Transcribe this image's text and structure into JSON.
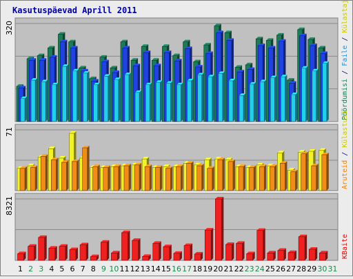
{
  "chart_data": {
    "type": "bar",
    "title": "Kasutuspäevad Aprill 2011",
    "categories": [
      "1",
      "2",
      "3",
      "4",
      "5",
      "6",
      "7",
      "8",
      "9",
      "10",
      "11",
      "12",
      "13",
      "14",
      "15",
      "16",
      "17",
      "18",
      "19",
      "20",
      "21",
      "22",
      "23",
      "24",
      "25",
      "26",
      "27",
      "28",
      "29",
      "30",
      "31"
    ],
    "weekend_days": [
      "2",
      "3",
      "9",
      "10",
      "16",
      "17",
      "23",
      "24",
      "30",
      "31"
    ],
    "panels": [
      {
        "key": "pages",
        "ymax_label": "320",
        "ymax": 320,
        "legend_label": "Pöördumisi / Faile / Külastajaid",
        "legend_parts": [
          {
            "text": "Pöördumisi",
            "color": "#1b7a55"
          },
          {
            "text": " / ",
            "color": "#000080"
          },
          {
            "text": "Faile",
            "color": "#2a8fd0"
          },
          {
            "text": " / ",
            "color": "#000080"
          },
          {
            "text": "Külastajaid",
            "color": "#c8c800"
          }
        ],
        "series": [
          {
            "name": "Pöördumisi",
            "color": "#1f7a58",
            "values": [
              115,
              205,
              215,
              240,
              285,
              260,
              175,
              140,
              210,
              175,
              260,
              200,
              245,
              200,
              245,
              215,
              260,
              195,
              250,
              312,
              290,
              177,
              185,
              270,
              265,
              282,
              135,
              300,
              268,
              240
            ]
          },
          {
            "name": "Faile",
            "color": "#1f42e0",
            "values": [
              110,
              200,
              200,
              210,
              260,
              240,
              165,
              132,
              195,
              160,
              240,
              182,
              225,
              182,
              225,
              198,
              238,
              178,
              222,
              290,
              265,
              162,
              170,
              248,
              240,
              262,
              125,
              280,
              248,
              222
            ]
          },
          {
            "name": "Külastajaid",
            "color": "#22d0ee",
            "values": [
              75,
              135,
              130,
              120,
              180,
              165,
              158,
              120,
              148,
              137,
              153,
              95,
              120,
              128,
              125,
              120,
              133,
              152,
              146,
              157,
              133,
              85,
              122,
              130,
              143,
              146,
              88,
              174,
              165,
              190
            ]
          }
        ]
      },
      {
        "key": "sites",
        "ymax_label": "71",
        "ymax": 71,
        "legend_label": "Aruteid / Külastusi",
        "legend_parts": [
          {
            "text": "Aruteid",
            "color": "#f08000"
          },
          {
            "text": " / ",
            "color": "#000080"
          },
          {
            "text": "Külastusi",
            "color": "#c8c800"
          }
        ],
        "series": [
          {
            "name": "Külastusi",
            "color": "#f2f22a",
            "values": [
              26,
              29,
              39,
              49,
              38,
              67,
              38,
              27,
              27,
              28,
              29,
              30,
              37,
              27,
              28,
              28,
              32,
              30,
              36,
              37,
              36,
              28,
              27,
              30,
              29,
              44,
              24,
              45,
              46,
              47
            ]
          },
          {
            "name": "Aruteid",
            "color": "#f08c18",
            "values": [
              26,
              27,
              40,
              36,
              33,
              34,
              50,
              28,
              27,
              28,
              29,
              30,
              28,
              27,
              26,
              28,
              32,
              29,
              26,
              36,
              34,
              28,
              27,
              28,
              28,
              32,
              22,
              43,
              29,
              42
            ]
          }
        ]
      },
      {
        "key": "kbytes",
        "ymax_label": "8321",
        "ymax": 8321,
        "legend_label": "KBaite",
        "legend_parts": [
          {
            "text": "KBaite",
            "color": "#e00000"
          }
        ],
        "series": [
          {
            "name": "KBaite",
            "color": "#ee2020",
            "values": [
              900,
              1900,
              3100,
              1650,
              1900,
              1450,
              2100,
              500,
              2450,
              1000,
              3750,
              2700,
              530,
              2300,
              1850,
              950,
              2000,
              850,
              4100,
              8321,
              2150,
              2300,
              900,
              4050,
              1000,
              1350,
              1050,
              3200,
              1500,
              1000
            ]
          }
        ]
      }
    ]
  }
}
